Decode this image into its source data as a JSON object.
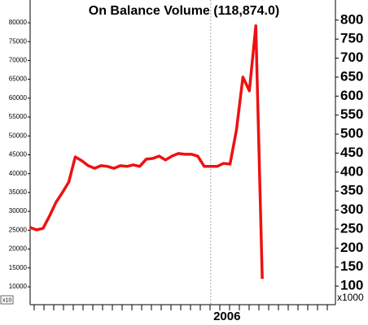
{
  "chart_data": {
    "type": "line",
    "title": "On Balance Volume (118,874.0)",
    "categories": [
      null,
      null,
      null,
      null,
      null,
      null,
      null,
      null,
      null,
      null,
      null,
      null,
      null,
      null,
      null,
      null,
      null,
      null,
      null,
      null,
      null,
      null,
      null,
      null,
      null,
      null,
      null,
      null,
      "2006",
      null,
      null,
      null,
      null,
      null,
      null,
      null,
      null
    ],
    "series": [
      {
        "name": "On Balance Volume",
        "color": "#ee1111",
        "axis": "y2",
        "values": [
          254,
          248,
          252,
          284,
          320,
          346,
          374,
          440,
          430,
          417,
          410,
          417,
          415,
          410,
          417,
          415,
          419,
          415,
          434,
          436,
          442,
          432,
          442,
          449,
          447,
          447,
          442,
          415,
          415,
          415,
          423,
          421,
          511,
          650,
          614,
          785,
          118.874
        ]
      }
    ],
    "ylim": [
      5260,
      86030
    ],
    "yticks": [
      10000,
      15000,
      20000,
      25000,
      30000,
      35000,
      40000,
      45000,
      50000,
      55000,
      60000,
      65000,
      70000,
      75000,
      80000
    ],
    "y2lim": [
      51,
      853
    ],
    "y2ticks": [
      100,
      150,
      200,
      250,
      300,
      350,
      400,
      450,
      500,
      550,
      600,
      650,
      700,
      750,
      800
    ],
    "y_axis_multiplier": "x10",
    "y2_axis_multiplier": "x1000"
  }
}
